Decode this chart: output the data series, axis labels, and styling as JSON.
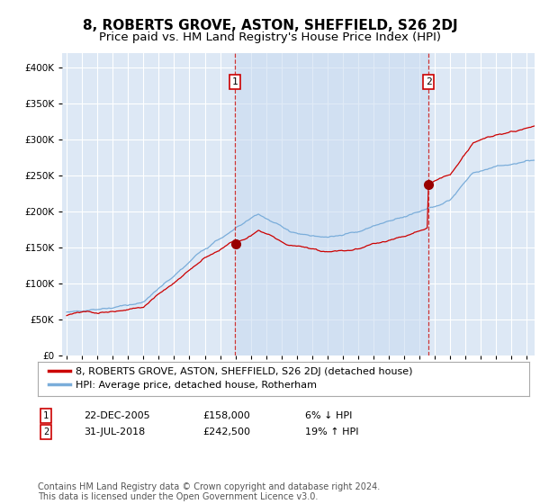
{
  "title": "8, ROBERTS GROVE, ASTON, SHEFFIELD, S26 2DJ",
  "subtitle": "Price paid vs. HM Land Registry's House Price Index (HPI)",
  "ylim": [
    0,
    420000
  ],
  "yticks": [
    0,
    50000,
    100000,
    150000,
    200000,
    250000,
    300000,
    350000,
    400000
  ],
  "ytick_labels": [
    "£0",
    "£50K",
    "£100K",
    "£150K",
    "£200K",
    "£250K",
    "£300K",
    "£350K",
    "£400K"
  ],
  "xlim_start": 1994.7,
  "xlim_end": 2025.5,
  "xticks": [
    1995,
    1996,
    1997,
    1998,
    1999,
    2000,
    2001,
    2002,
    2003,
    2004,
    2005,
    2006,
    2007,
    2008,
    2009,
    2010,
    2011,
    2012,
    2013,
    2014,
    2015,
    2016,
    2017,
    2018,
    2019,
    2020,
    2021,
    2022,
    2023,
    2024,
    2025
  ],
  "background_color": "#dde8f5",
  "grid_color": "#ffffff",
  "red_line_color": "#cc0000",
  "blue_line_color": "#7aadda",
  "event1_x": 2005.97,
  "event1_y": 158000,
  "event2_x": 2018.58,
  "event2_y": 242500,
  "legend_line1": "8, ROBERTS GROVE, ASTON, SHEFFIELD, S26 2DJ (detached house)",
  "legend_line2": "HPI: Average price, detached house, Rotherham",
  "table_data": [
    {
      "num": "1",
      "date": "22-DEC-2005",
      "price": "£158,000",
      "hpi": "6% ↓ HPI"
    },
    {
      "num": "2",
      "date": "31-JUL-2018",
      "price": "£242,500",
      "hpi": "19% ↑ HPI"
    }
  ],
  "footnote": "Contains HM Land Registry data © Crown copyright and database right 2024.\nThis data is licensed under the Open Government Licence v3.0.",
  "title_fontsize": 11,
  "subtitle_fontsize": 9.5,
  "tick_fontsize": 7.5,
  "legend_fontsize": 8,
  "table_fontsize": 8,
  "footnote_fontsize": 7
}
